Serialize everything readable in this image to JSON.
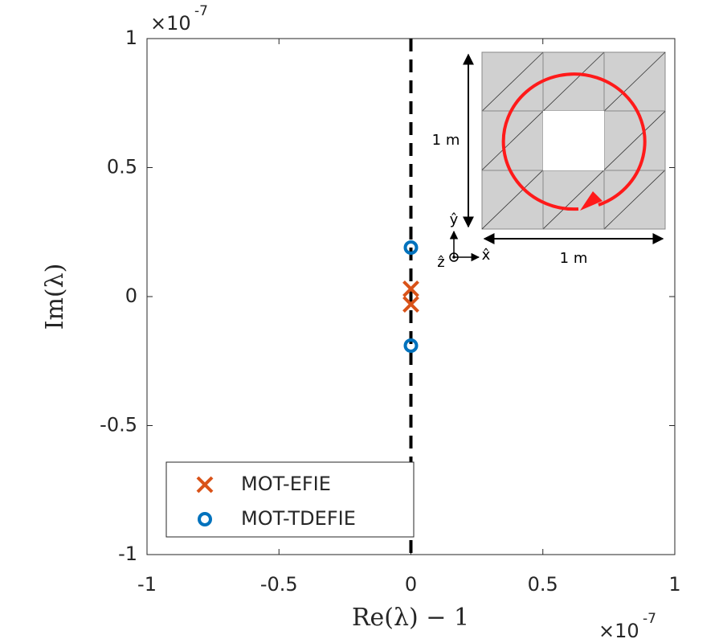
{
  "chart_data": {
    "type": "scatter",
    "x_label": "Re(λ) − 1",
    "y_label": "Im(λ)",
    "x_exponent": {
      "base": "×10",
      "power": "-7"
    },
    "y_exponent": {
      "base": "×10",
      "power": "-7"
    },
    "xlim": [
      -1,
      1
    ],
    "ylim": [
      -1,
      1
    ],
    "xticks": [
      -1,
      -0.5,
      0,
      0.5,
      1
    ],
    "yticks": [
      -1,
      -0.5,
      0,
      0.5,
      1
    ],
    "grid": false,
    "legend": "lower left",
    "reference_line": {
      "x": 0,
      "color": "#000000"
    },
    "series": [
      {
        "name": "MOT-EFIE",
        "color": "#d95319",
        "marker": "x",
        "x": [
          0,
          0
        ],
        "values": [
          0.03,
          -0.03
        ]
      },
      {
        "name": "MOT-TDEFIE",
        "color": "#0072bd",
        "marker": "o",
        "x": [
          0,
          0
        ],
        "values": [
          0.19,
          -0.19
        ]
      }
    ],
    "inset": {
      "height_label": "1 m",
      "width_label": "1 m",
      "x_axis": "x̂",
      "y_axis": "ŷ",
      "z_axis": "ẑ"
    }
  }
}
